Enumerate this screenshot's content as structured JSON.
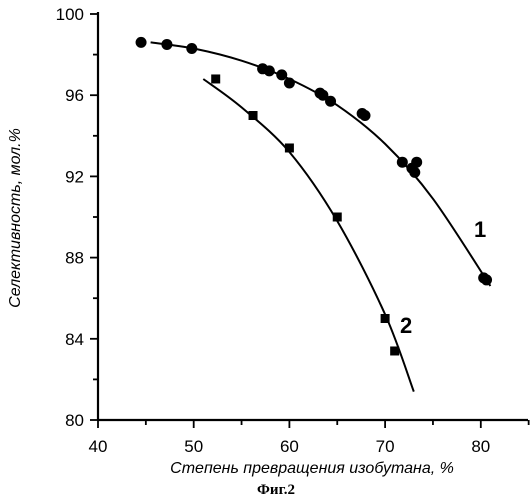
{
  "caption": "Фиг.2",
  "chart_data": {
    "type": "scatter",
    "title": "",
    "xlabel": "Степень превращения изобутана, %",
    "ylabel": "Селективность, мол.%",
    "xlim": [
      40,
      85
    ],
    "ylim": [
      80,
      100
    ],
    "xticks": [
      40,
      50,
      60,
      70,
      80
    ],
    "yticks": [
      80,
      84,
      88,
      92,
      96,
      100
    ],
    "grid": false,
    "legend": "none",
    "series": [
      {
        "name": "1",
        "marker": "circle",
        "color": "#000000",
        "points": [
          [
            44.5,
            98.6
          ],
          [
            47.2,
            98.5
          ],
          [
            49.8,
            98.3
          ],
          [
            57.2,
            97.3
          ],
          [
            57.9,
            97.2
          ],
          [
            59.2,
            97.0
          ],
          [
            60.0,
            96.6
          ],
          [
            63.2,
            96.1
          ],
          [
            63.5,
            96.0
          ],
          [
            64.3,
            95.7
          ],
          [
            67.6,
            95.1
          ],
          [
            67.9,
            95.0
          ],
          [
            71.8,
            92.7
          ],
          [
            72.8,
            92.4
          ],
          [
            73.1,
            92.2
          ],
          [
            73.3,
            92.7
          ],
          [
            80.3,
            87.0
          ],
          [
            80.6,
            86.9
          ]
        ],
        "fit": [
          [
            45.5,
            98.6
          ],
          [
            50,
            98.3
          ],
          [
            55,
            97.7
          ],
          [
            60,
            96.8
          ],
          [
            65,
            95.5
          ],
          [
            70,
            93.6
          ],
          [
            75,
            90.9
          ],
          [
            81,
            86.6
          ]
        ]
      },
      {
        "name": "2",
        "marker": "square",
        "color": "#000000",
        "points": [
          [
            52.3,
            96.8
          ],
          [
            56.2,
            95.0
          ],
          [
            60.0,
            93.4
          ],
          [
            65.0,
            90.0
          ],
          [
            70.0,
            85.0
          ],
          [
            71.0,
            83.4
          ]
        ],
        "fit": [
          [
            51,
            96.8
          ],
          [
            55,
            95.4
          ],
          [
            60,
            93.2
          ],
          [
            65,
            89.8
          ],
          [
            70,
            85.2
          ],
          [
            73,
            81.4
          ]
        ]
      }
    ]
  }
}
